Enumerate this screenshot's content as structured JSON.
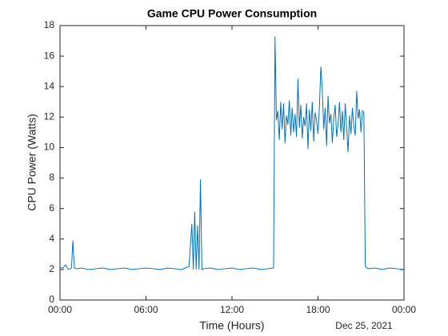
{
  "chart_data": {
    "type": "line",
    "title": "Game CPU Power Consumption",
    "x_label": "Time (Hours)",
    "y_label": "CPU Power (Watts)",
    "date_label": "Dec 25, 2021",
    "xlim": [
      0,
      24
    ],
    "xticks": [
      {
        "value": 0,
        "label": "00:00"
      },
      {
        "value": 6,
        "label": "06:00"
      },
      {
        "value": 12,
        "label": "12:00"
      },
      {
        "value": 18,
        "label": "18:00"
      },
      {
        "value": 24,
        "label": "00:00"
      }
    ],
    "ylim": [
      0,
      18
    ],
    "yticks": [
      0,
      2,
      4,
      6,
      8,
      10,
      12,
      14,
      16,
      18
    ],
    "grid": false,
    "series": [
      {
        "color": "#0072bd",
        "x": [
          0,
          0.2,
          0.4,
          0.6,
          0.8,
          0.9,
          1.0,
          1.2,
          1.5,
          2,
          2.5,
          3,
          3.5,
          4,
          4.5,
          5,
          5.5,
          6,
          6.5,
          7,
          7.5,
          8,
          8.5,
          9,
          9.2,
          9.3,
          9.4,
          9.5,
          9.6,
          9.7,
          9.8,
          9.9,
          10,
          10.5,
          11,
          11.5,
          12,
          12.5,
          13,
          13.5,
          14,
          14.5,
          14.9,
          15,
          15.1,
          15.2,
          15.3,
          15.4,
          15.5,
          15.6,
          15.7,
          15.8,
          15.9,
          16.0,
          16.1,
          16.2,
          16.3,
          16.4,
          16.5,
          16.6,
          16.7,
          16.8,
          16.9,
          17.0,
          17.1,
          17.2,
          17.3,
          17.4,
          17.5,
          17.6,
          17.7,
          17.8,
          17.9,
          18.0,
          18.1,
          18.2,
          18.3,
          18.4,
          18.5,
          18.6,
          18.7,
          18.8,
          18.9,
          19.0,
          19.1,
          19.2,
          19.3,
          19.4,
          19.5,
          19.6,
          19.7,
          19.8,
          19.9,
          20.0,
          20.1,
          20.2,
          20.3,
          20.4,
          20.5,
          20.6,
          20.7,
          20.8,
          20.9,
          21.0,
          21.1,
          21.2,
          21.3,
          21.5,
          22,
          22.5,
          23,
          23.5,
          24
        ],
        "values": [
          2.1,
          2.1,
          2.3,
          2.0,
          2.1,
          3.9,
          2.1,
          2.05,
          2.1,
          2.0,
          2.05,
          2.1,
          2.0,
          2.05,
          2.1,
          2.0,
          2.05,
          2.1,
          2.05,
          2.0,
          2.1,
          2.05,
          2.0,
          2.2,
          5.0,
          2.0,
          5.8,
          2.0,
          4.9,
          2.0,
          7.9,
          2.0,
          2.05,
          2.1,
          2.0,
          2.05,
          2.1,
          2.0,
          2.05,
          2.1,
          2.0,
          2.05,
          2.1,
          17.3,
          11.8,
          12.4,
          10.5,
          13.0,
          11.2,
          12.9,
          10.3,
          12.1,
          11.5,
          13.1,
          10.8,
          12.6,
          11.0,
          12.2,
          10.7,
          14.5,
          11.3,
          12.8,
          10.6,
          12.0,
          11.4,
          12.9,
          9.9,
          12.5,
          11.1,
          13.0,
          10.4,
          12.3,
          11.8,
          10.9,
          12.7,
          15.3,
          13.8,
          11.2,
          12.6,
          10.1,
          13.4,
          11.6,
          12.2,
          10.3,
          11.9,
          12.8,
          10.7,
          11.5,
          13.0,
          11.0,
          12.4,
          10.5,
          12.9,
          11.3,
          9.7,
          12.1,
          10.9,
          12.6,
          11.4,
          10.8,
          13.7,
          11.9,
          12.5,
          11.0,
          12.4,
          12.3,
          2.2,
          2.05,
          2.1,
          2.0,
          2.1,
          2.05,
          2.0
        ]
      }
    ]
  }
}
